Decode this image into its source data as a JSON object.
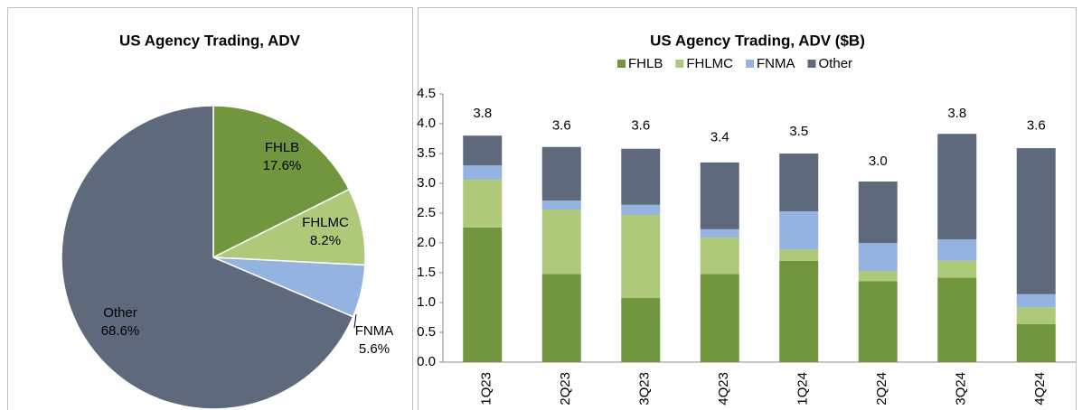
{
  "chart_data": [
    {
      "type": "pie",
      "title": "US Agency Trading, ADV",
      "categories": [
        "FHLB",
        "FHLMC",
        "FNMA",
        "Other"
      ],
      "values": [
        17.6,
        8.2,
        5.6,
        68.6
      ],
      "value_labels": [
        "17.6%",
        "8.2%",
        "5.6%",
        "68.6%"
      ],
      "colors": [
        "#71963d",
        "#afc97b",
        "#95b3e0",
        "#5e6a7c"
      ]
    },
    {
      "type": "stacked_bar",
      "title": "US Agency Trading, ADV ($B)",
      "categories": [
        "1Q23",
        "2Q23",
        "3Q23",
        "4Q23",
        "1Q24",
        "2Q24",
        "3Q24",
        "4Q24"
      ],
      "series": [
        {
          "name": "FHLB",
          "color": "#71963d",
          "values": [
            2.26,
            1.48,
            1.08,
            1.48,
            1.7,
            1.36,
            1.42,
            0.64
          ]
        },
        {
          "name": "FHLMC",
          "color": "#afc97b",
          "values": [
            0.8,
            1.08,
            1.39,
            0.61,
            0.19,
            0.17,
            0.28,
            0.28
          ]
        },
        {
          "name": "FNMA",
          "color": "#95b3e0",
          "values": [
            0.24,
            0.15,
            0.17,
            0.14,
            0.64,
            0.47,
            0.36,
            0.22
          ]
        },
        {
          "name": "Other",
          "color": "#5e6a7c",
          "values": [
            0.5,
            0.9,
            0.94,
            1.12,
            0.97,
            1.03,
            1.77,
            2.45
          ]
        }
      ],
      "totals": [
        3.8,
        3.6,
        3.6,
        3.4,
        3.5,
        3.0,
        3.8,
        3.6
      ],
      "total_labels": [
        "3.8",
        "3.6",
        "3.6",
        "3.4",
        "3.5",
        "3.0",
        "3.8",
        "3.6"
      ],
      "ylim": [
        0,
        4.5
      ],
      "yticks": [
        {
          "value": 0,
          "label": "0.0"
        },
        0.5,
        {
          "value": 1,
          "label": "1.0"
        },
        1.5,
        {
          "value": 2,
          "label": "2.0"
        },
        2.5,
        {
          "value": 3,
          "label": "3.0"
        },
        3.5,
        {
          "value": 4,
          "label": "4.0"
        },
        4.5
      ],
      "legend": "top"
    }
  ]
}
